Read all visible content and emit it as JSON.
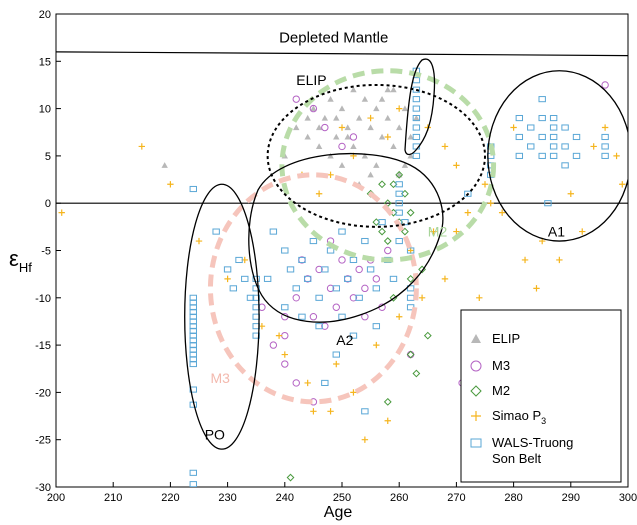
{
  "chart_data": {
    "type": "scatter",
    "xlabel": "Age",
    "ylabel": "ε",
    "ylabel_sub": "Hf",
    "xlim": [
      200,
      300
    ],
    "ylim": [
      -30,
      20
    ],
    "xticks": [
      200,
      210,
      220,
      230,
      240,
      250,
      260,
      270,
      280,
      290,
      300
    ],
    "yticks": [
      -30,
      -25,
      -20,
      -15,
      -10,
      -5,
      0,
      5,
      10,
      15,
      20
    ],
    "grid": false,
    "legend_position": "bottom-right",
    "reference_lines": [
      {
        "label": "Depleted Mantle",
        "x": [
          200,
          300
        ],
        "y": [
          16,
          15.6
        ]
      },
      {
        "label": "",
        "x": [
          200,
          300
        ],
        "y": [
          0,
          0
        ]
      }
    ],
    "regions": [
      {
        "label": "ELIP",
        "style": "dotted ellipse",
        "color": "#000000",
        "center": [
          256,
          5
        ],
        "radii": [
          19,
          7.5
        ]
      },
      {
        "label": "A1",
        "style": "solid ellipse",
        "color": "#000000",
        "center": [
          288,
          5
        ],
        "radii": [
          12.5,
          9
        ]
      },
      {
        "label": "PO",
        "style": "solid ellipse",
        "color": "#000000",
        "center": [
          229,
          -12
        ],
        "radii": [
          6.5,
          14
        ]
      },
      {
        "label": "M2",
        "style": "dashed ellipse",
        "color": "#b9dca8",
        "center": [
          258,
          4
        ],
        "radii": [
          18.5,
          10
        ]
      },
      {
        "label": "M3",
        "style": "dashed ellipse",
        "color": "#f6c5bc",
        "center": [
          245,
          -9
        ],
        "radii": [
          18,
          12
        ]
      },
      {
        "label": "A2",
        "style": "solid outline",
        "color": "#000000"
      }
    ],
    "series": [
      {
        "name": "ELIP",
        "marker": "triangle",
        "color": "#b8b8b8",
        "points": [
          [
            219,
            4
          ],
          [
            240,
            5
          ],
          [
            242,
            8
          ],
          [
            244,
            7
          ],
          [
            245,
            10
          ],
          [
            246,
            6
          ],
          [
            247,
            9
          ],
          [
            248,
            11
          ],
          [
            249,
            7
          ],
          [
            250,
            10
          ],
          [
            251,
            8
          ],
          [
            252,
            12
          ],
          [
            252,
            6
          ],
          [
            253,
            9
          ],
          [
            254,
            11
          ],
          [
            254,
            5
          ],
          [
            255,
            8
          ],
          [
            256,
            10
          ],
          [
            256,
            4
          ],
          [
            257,
            7
          ],
          [
            258,
            9
          ],
          [
            258,
            12
          ],
          [
            259,
            6
          ],
          [
            260,
            8
          ],
          [
            260,
            3
          ],
          [
            261,
            10
          ],
          [
            262,
            5
          ],
          [
            262,
            7
          ],
          [
            263,
            9
          ],
          [
            248,
            5
          ],
          [
            250,
            4
          ],
          [
            255,
            3
          ],
          [
            253,
            2
          ],
          [
            246,
            8
          ],
          [
            249,
            9
          ],
          [
            257,
            11
          ],
          [
            259,
            12
          ],
          [
            261,
            4
          ],
          [
            244,
            9
          ],
          [
            251,
            7
          ]
        ]
      },
      {
        "name": "M3",
        "marker": "circle",
        "color": "#b463c4",
        "points": [
          [
            242,
            11
          ],
          [
            245,
            10
          ],
          [
            247,
            8
          ],
          [
            250,
            6
          ],
          [
            252,
            7
          ],
          [
            236,
            -11
          ],
          [
            238,
            -15
          ],
          [
            240,
            -14
          ],
          [
            240,
            -12
          ],
          [
            242,
            -10
          ],
          [
            244,
            -8
          ],
          [
            245,
            -12
          ],
          [
            246,
            -7
          ],
          [
            248,
            -9
          ],
          [
            249,
            -11
          ],
          [
            250,
            -6
          ],
          [
            251,
            -8
          ],
          [
            252,
            -10
          ],
          [
            253,
            -7
          ],
          [
            254,
            -9
          ],
          [
            255,
            -6
          ],
          [
            256,
            -8
          ],
          [
            257,
            -11
          ],
          [
            258,
            -5
          ],
          [
            240,
            -17
          ],
          [
            242,
            -19
          ],
          [
            245,
            -21
          ],
          [
            271,
            -19
          ],
          [
            296,
            12.5
          ],
          [
            262,
            -16
          ],
          [
            248,
            -4
          ],
          [
            247,
            -13
          ],
          [
            243,
            -6
          ],
          [
            254,
            -12
          ]
        ]
      },
      {
        "name": "M2",
        "marker": "diamond",
        "color": "#4a9a3e",
        "points": [
          [
            255,
            1
          ],
          [
            257,
            2
          ],
          [
            258,
            0
          ],
          [
            259,
            -1
          ],
          [
            260,
            -2
          ],
          [
            261,
            -3
          ],
          [
            262,
            -1
          ],
          [
            258,
            -4
          ],
          [
            260,
            3
          ],
          [
            256,
            -2
          ],
          [
            263,
            -18
          ],
          [
            262,
            -16
          ],
          [
            241,
            -29
          ],
          [
            258,
            -21
          ],
          [
            265,
            -14
          ],
          [
            259,
            2
          ],
          [
            261,
            1
          ],
          [
            257,
            -3
          ],
          [
            262,
            -8
          ],
          [
            264,
            -7
          ],
          [
            259,
            -10
          ]
        ]
      },
      {
        "name": "Simao P3",
        "marker": "plus",
        "color": "#f5b51e",
        "points": [
          [
            201,
            -1
          ],
          [
            215,
            6
          ],
          [
            220,
            2
          ],
          [
            225,
            -4
          ],
          [
            230,
            -8
          ],
          [
            236,
            -13
          ],
          [
            240,
            -16
          ],
          [
            244,
            -19
          ],
          [
            248,
            -22
          ],
          [
            252,
            -20
          ],
          [
            256,
            -15
          ],
          [
            260,
            -12
          ],
          [
            264,
            -10
          ],
          [
            268,
            -8
          ],
          [
            270,
            -3
          ],
          [
            272,
            -1
          ],
          [
            275,
            2
          ],
          [
            278,
            -1
          ],
          [
            282,
            -6
          ],
          [
            285,
            -4
          ],
          [
            288,
            -6
          ],
          [
            290,
            1
          ],
          [
            292,
            -3
          ],
          [
            294,
            6
          ],
          [
            296,
            8
          ],
          [
            250,
            8
          ],
          [
            255,
            9
          ],
          [
            260,
            10
          ],
          [
            265,
            8
          ],
          [
            268,
            6
          ],
          [
            270,
            4
          ],
          [
            248,
            3
          ],
          [
            252,
            5
          ],
          [
            258,
            7
          ],
          [
            246,
            1
          ],
          [
            243,
            3
          ],
          [
            262,
            -5
          ],
          [
            266,
            -3
          ],
          [
            274,
            -10
          ],
          [
            276,
            0
          ],
          [
            280,
            8
          ],
          [
            284,
            -9
          ],
          [
            298,
            5
          ],
          [
            299,
            2
          ],
          [
            245,
            -22
          ],
          [
            249,
            -17
          ],
          [
            254,
            -25
          ],
          [
            258,
            -23
          ],
          [
            239,
            -14
          ],
          [
            233,
            -6
          ]
        ]
      },
      {
        "name": "WALS-Truong Son Belt",
        "marker": "square",
        "color": "#5aa7d6",
        "points": [
          [
            224,
            1.5
          ],
          [
            224,
            -10
          ],
          [
            224,
            -10.5
          ],
          [
            224,
            -11
          ],
          [
            224,
            -11.5
          ],
          [
            224,
            -12
          ],
          [
            224,
            -12.5
          ],
          [
            224,
            -13
          ],
          [
            224,
            -13.5
          ],
          [
            224,
            -14
          ],
          [
            224,
            -14.5
          ],
          [
            224,
            -15
          ],
          [
            224,
            -15.5
          ],
          [
            224,
            -16
          ],
          [
            224,
            -16.5
          ],
          [
            224,
            -17
          ],
          [
            224,
            -19.7
          ],
          [
            224,
            -21.3
          ],
          [
            224,
            -28.5
          ],
          [
            224,
            -29.7
          ],
          [
            228,
            -3
          ],
          [
            230,
            -7
          ],
          [
            231,
            -9
          ],
          [
            232,
            -6
          ],
          [
            233,
            -8
          ],
          [
            234,
            -10
          ],
          [
            235,
            -8
          ],
          [
            235,
            -9
          ],
          [
            235,
            -10
          ],
          [
            235,
            -11
          ],
          [
            235,
            -12
          ],
          [
            235,
            -13
          ],
          [
            235,
            -14
          ],
          [
            238,
            -3
          ],
          [
            240,
            -5
          ],
          [
            241,
            -7
          ],
          [
            242,
            -9
          ],
          [
            243,
            -6
          ],
          [
            244,
            -8
          ],
          [
            245,
            -4
          ],
          [
            246,
            -10
          ],
          [
            247,
            -7
          ],
          [
            248,
            -5
          ],
          [
            249,
            -9
          ],
          [
            250,
            -3
          ],
          [
            251,
            -8
          ],
          [
            252,
            -6
          ],
          [
            253,
            -10
          ],
          [
            254,
            -4
          ],
          [
            255,
            -7
          ],
          [
            256,
            -9
          ],
          [
            257,
            -2
          ],
          [
            258,
            -6
          ],
          [
            259,
            -8
          ],
          [
            260,
            -4
          ],
          [
            260,
            -1
          ],
          [
            260,
            0
          ],
          [
            260,
            1
          ],
          [
            260,
            2
          ],
          [
            261,
            -2
          ],
          [
            262,
            -5
          ],
          [
            262,
            -9
          ],
          [
            262,
            -10
          ],
          [
            262,
            -11
          ],
          [
            263,
            14
          ],
          [
            263,
            13
          ],
          [
            263,
            12
          ],
          [
            263,
            11
          ],
          [
            263,
            10
          ],
          [
            263,
            9
          ],
          [
            263,
            8
          ],
          [
            263,
            7
          ],
          [
            263,
            6
          ],
          [
            263,
            5
          ],
          [
            276,
            4
          ],
          [
            276,
            5
          ],
          [
            276,
            6
          ],
          [
            276,
            3
          ],
          [
            281,
            9
          ],
          [
            281,
            7
          ],
          [
            281,
            5
          ],
          [
            283,
            8
          ],
          [
            283,
            6
          ],
          [
            285,
            11
          ],
          [
            285,
            9
          ],
          [
            285,
            7
          ],
          [
            285,
            5
          ],
          [
            287,
            9
          ],
          [
            287,
            8
          ],
          [
            287,
            7
          ],
          [
            287,
            6
          ],
          [
            287,
            5
          ],
          [
            289,
            8
          ],
          [
            289,
            6
          ],
          [
            289,
            4
          ],
          [
            291,
            7
          ],
          [
            291,
            5
          ],
          [
            296,
            7
          ],
          [
            296,
            6
          ],
          [
            296,
            5
          ],
          [
            286,
            0
          ],
          [
            272,
            1
          ],
          [
            250,
            -12
          ],
          [
            246,
            -13
          ],
          [
            252,
            -14
          ],
          [
            247,
            -19
          ],
          [
            249,
            -16
          ],
          [
            254,
            -22
          ],
          [
            240,
            -11
          ],
          [
            243,
            -12
          ],
          [
            256,
            -13
          ],
          [
            237,
            -8
          ]
        ]
      }
    ],
    "annotations": [
      {
        "text": "Depleted Mantle",
        "x": 239,
        "y": 17
      },
      {
        "text": "ELIP",
        "x": 242,
        "y": 12.5
      },
      {
        "text": "A1",
        "x": 286,
        "y": -3.5
      },
      {
        "text": "A2",
        "x": 249,
        "y": -15
      },
      {
        "text": "PO",
        "x": 226,
        "y": -25
      },
      {
        "text": "M2",
        "x": 265,
        "y": -3.5
      },
      {
        "text": "M3",
        "x": 227,
        "y": -19
      }
    ]
  },
  "legend": {
    "items": [
      {
        "label": "ELIP",
        "sub": "",
        "label2": ""
      },
      {
        "label": "M3",
        "sub": "",
        "label2": ""
      },
      {
        "label": "M2",
        "sub": "",
        "label2": ""
      },
      {
        "label": "Simao P",
        "sub": "3",
        "label2": ""
      },
      {
        "label": "WALS-Truong",
        "sub": "",
        "label2": "Son Belt"
      }
    ]
  }
}
